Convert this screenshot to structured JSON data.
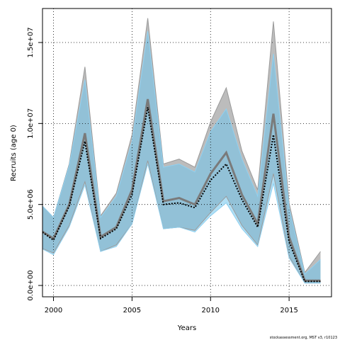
{
  "chart_data": {
    "type": "area",
    "xlabel": "Years",
    "ylabel": "Recruits (age 0)",
    "xlim": [
      1999.3,
      2017.7
    ],
    "ylim": [
      -700000,
      17100000
    ],
    "x_ticks": [
      2000,
      2005,
      2010,
      2015
    ],
    "x_tick_labels": [
      "2000",
      "2005",
      "2010",
      "2015"
    ],
    "y_ticks": [
      0,
      5000000,
      10000000,
      15000000
    ],
    "y_tick_labels": [
      "0.0e+00",
      "5.0e+06",
      "1.0e+07",
      "1.5e+07"
    ],
    "grid": true,
    "x": [
      1999,
      2000,
      2001,
      2002,
      2003,
      2004,
      2005,
      2006,
      2007,
      2008,
      2009,
      2010,
      2011,
      2012,
      2013,
      2014,
      2015,
      2016,
      2017
    ],
    "series": [
      {
        "role": "upper_interval_grey",
        "color": "#b0b0b0",
        "values": [
          5200000,
          4200000,
          7500000,
          13500000,
          4300000,
          5700000,
          9300000,
          16500000,
          7500000,
          7800000,
          7300000,
          10100000,
          12200000,
          8300000,
          5900000,
          16300000,
          5100000,
          800000,
          2100000
        ]
      },
      {
        "role": "lower_interval_grey",
        "color": "#b0b0b0",
        "values": [
          2400000,
          2000000,
          3700000,
          6400000,
          2100000,
          2500000,
          3800000,
          7700000,
          3500000,
          3600000,
          3400000,
          4500000,
          5500000,
          3700000,
          2500000,
          6900000,
          1800000,
          150000,
          150000
        ]
      },
      {
        "role": "estimate_grey",
        "color": "#7a7a7a",
        "values": [
          3500000,
          2900000,
          5000000,
          9400000,
          3000000,
          3600000,
          5900000,
          11500000,
          5200000,
          5400000,
          5000000,
          6900000,
          8200000,
          5600000,
          3800000,
          10600000,
          3000000,
          300000,
          300000
        ]
      },
      {
        "role": "upper_interval_blue",
        "color": "#6fc4ec",
        "values": [
          5200000,
          4200000,
          7400000,
          12700000,
          4200000,
          5500000,
          8900000,
          15700000,
          7300000,
          7500000,
          7000000,
          9500000,
          10900000,
          7800000,
          5500000,
          14300000,
          4800000,
          700000,
          1600000
        ]
      },
      {
        "role": "lower_interval_blue",
        "color": "#6fc4ec",
        "values": [
          2400000,
          1900000,
          3600000,
          6200000,
          2100000,
          2400000,
          3800000,
          7500000,
          3500000,
          3600000,
          3300000,
          4300000,
          5100000,
          3500000,
          2400000,
          6300000,
          1700000,
          150000,
          150000
        ]
      },
      {
        "role": "estimate_dotted",
        "color": "#000000",
        "values": [
          3500000,
          2800000,
          4900000,
          8900000,
          2900000,
          3500000,
          5600000,
          11000000,
          5000000,
          5100000,
          4800000,
          6500000,
          7500000,
          5300000,
          3600000,
          9300000,
          2700000,
          250000,
          250000
        ]
      }
    ]
  },
  "footer": {
    "text": "stockassessment.org, MST  v3, r10123"
  }
}
